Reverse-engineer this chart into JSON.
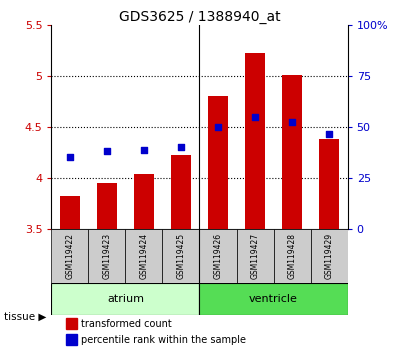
{
  "title": "GDS3625 / 1388940_at",
  "samples": [
    "GSM119422",
    "GSM119423",
    "GSM119424",
    "GSM119425",
    "GSM119426",
    "GSM119427",
    "GSM119428",
    "GSM119429"
  ],
  "transformed_counts": [
    3.82,
    3.95,
    4.04,
    4.22,
    4.8,
    5.22,
    5.01,
    4.38
  ],
  "percentile_ranks_left": [
    4.2,
    4.26,
    4.27,
    4.3,
    4.5,
    4.6,
    4.55,
    4.43
  ],
  "bar_bottom": 3.5,
  "ylim_left": [
    3.5,
    5.5
  ],
  "ylim_right": [
    0,
    100
  ],
  "yticks_left": [
    3.5,
    4.0,
    4.5,
    5.0,
    5.5
  ],
  "ytick_labels_left": [
    "3.5",
    "4",
    "4.5",
    "5",
    "5.5"
  ],
  "yticks_right": [
    0,
    25,
    50,
    75,
    100
  ],
  "ytick_labels_right": [
    "0",
    "25",
    "50",
    "75",
    "100%"
  ],
  "bar_color": "#cc0000",
  "dot_color": "#0000cc",
  "atrium_label": "atrium",
  "ventricle_label": "ventricle",
  "tissue_label": "tissue",
  "legend_bar_label": "transformed count",
  "legend_dot_label": "percentile rank within the sample",
  "atrium_color": "#ccffcc",
  "ventricle_color": "#55dd55",
  "sample_bg_color": "#cccccc",
  "bar_width": 0.55,
  "n_atrium": 4,
  "n_ventricle": 4
}
